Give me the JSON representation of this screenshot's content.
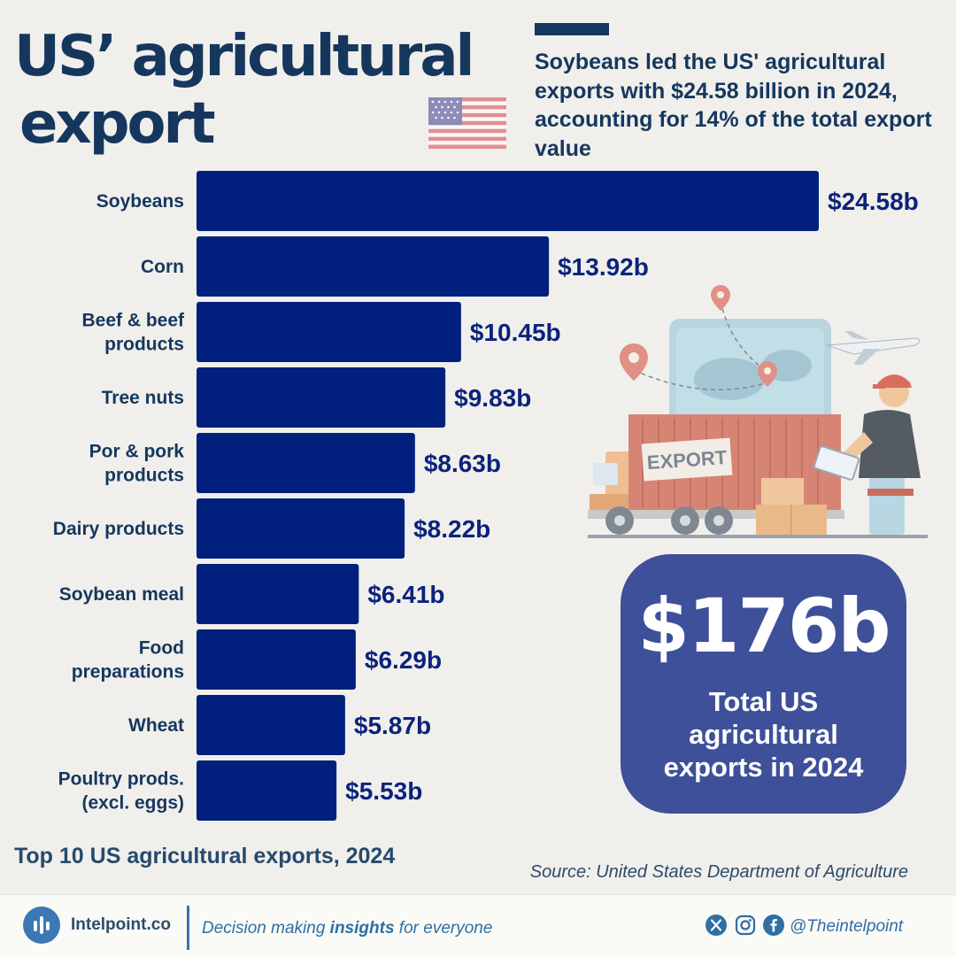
{
  "header": {
    "title_line1": "US’ agricultural",
    "title_line2": "export",
    "subtitle": "Soybeans led the US' agricultural exports with $24.58 billion in 2024, accounting for 14% of the total export value"
  },
  "chart_data": {
    "type": "bar",
    "orientation": "horizontal",
    "title": "Top 10 US agricultural exports, 2024",
    "categories": [
      [
        "Soybeans"
      ],
      [
        "Corn"
      ],
      [
        "Beef & beef",
        "products"
      ],
      [
        "Tree nuts"
      ],
      [
        "Por & pork",
        "products"
      ],
      [
        "Dairy products"
      ],
      [
        "Soybean meal"
      ],
      [
        "Food",
        "preparations"
      ],
      [
        "Wheat"
      ],
      [
        "Poultry prods.",
        "(excl. eggs)"
      ]
    ],
    "values": [
      24.58,
      13.92,
      10.45,
      9.83,
      8.63,
      8.22,
      6.41,
      6.29,
      5.87,
      5.53
    ],
    "value_labels": [
      "$24.58b",
      "$13.92b",
      "$10.45b",
      "$9.83b",
      "$8.63b",
      "$8.22b",
      "$6.41b",
      "$6.29b",
      "$5.87b",
      "$5.53b"
    ],
    "xlim": [
      0,
      24.58
    ],
    "bar_color": "#01207d",
    "grid": false,
    "legend": "none"
  },
  "illustration": {
    "truck_label": "EXPORT"
  },
  "total": {
    "value": "$176b",
    "label": "Total US agricultural exports in 2024"
  },
  "source": "Source: United States Department of Agriculture",
  "footer": {
    "brand": "Intelpoint.co",
    "tagline_pre": "Decision making ",
    "tagline_em": "insights",
    "tagline_post": " for everyone",
    "handle": "@Theintelpoint",
    "social_icons": [
      "x-icon",
      "instagram-icon",
      "facebook-icon"
    ]
  },
  "colors": {
    "navy_text": "#15375e",
    "bar": "#01207d",
    "total_box": "#3e509a",
    "accent": "#2f6fa4"
  }
}
